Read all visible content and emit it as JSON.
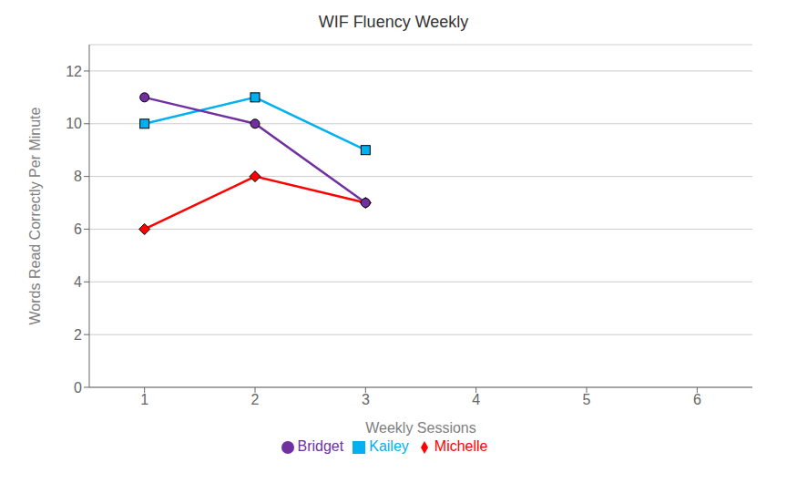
{
  "chart_data": {
    "type": "line",
    "title": "WIF Fluency Weekly",
    "x_label": "Weekly Sessions",
    "y_label": "Words Read Correctly Per Minute",
    "x": [
      1,
      2,
      3
    ],
    "series": [
      {
        "name": "Kailey",
        "color": "#00B0F0",
        "marker": "square",
        "values": [
          10,
          11,
          9
        ]
      },
      {
        "name": "Michelle",
        "color": "#FF0000",
        "marker": "diamond",
        "values": [
          6,
          8,
          7
        ]
      },
      {
        "name": "Bridget",
        "color": "#7030A0",
        "marker": "circle",
        "values": [
          11,
          10,
          7
        ]
      }
    ],
    "xlim": [
      0.5,
      6.5
    ],
    "xticks": [
      1,
      2,
      3,
      4,
      5,
      6
    ],
    "ylim": [
      0,
      13
    ],
    "yticks": [
      0,
      2,
      4,
      6,
      8,
      10,
      12
    ],
    "grid": true,
    "legend": "bottom"
  }
}
